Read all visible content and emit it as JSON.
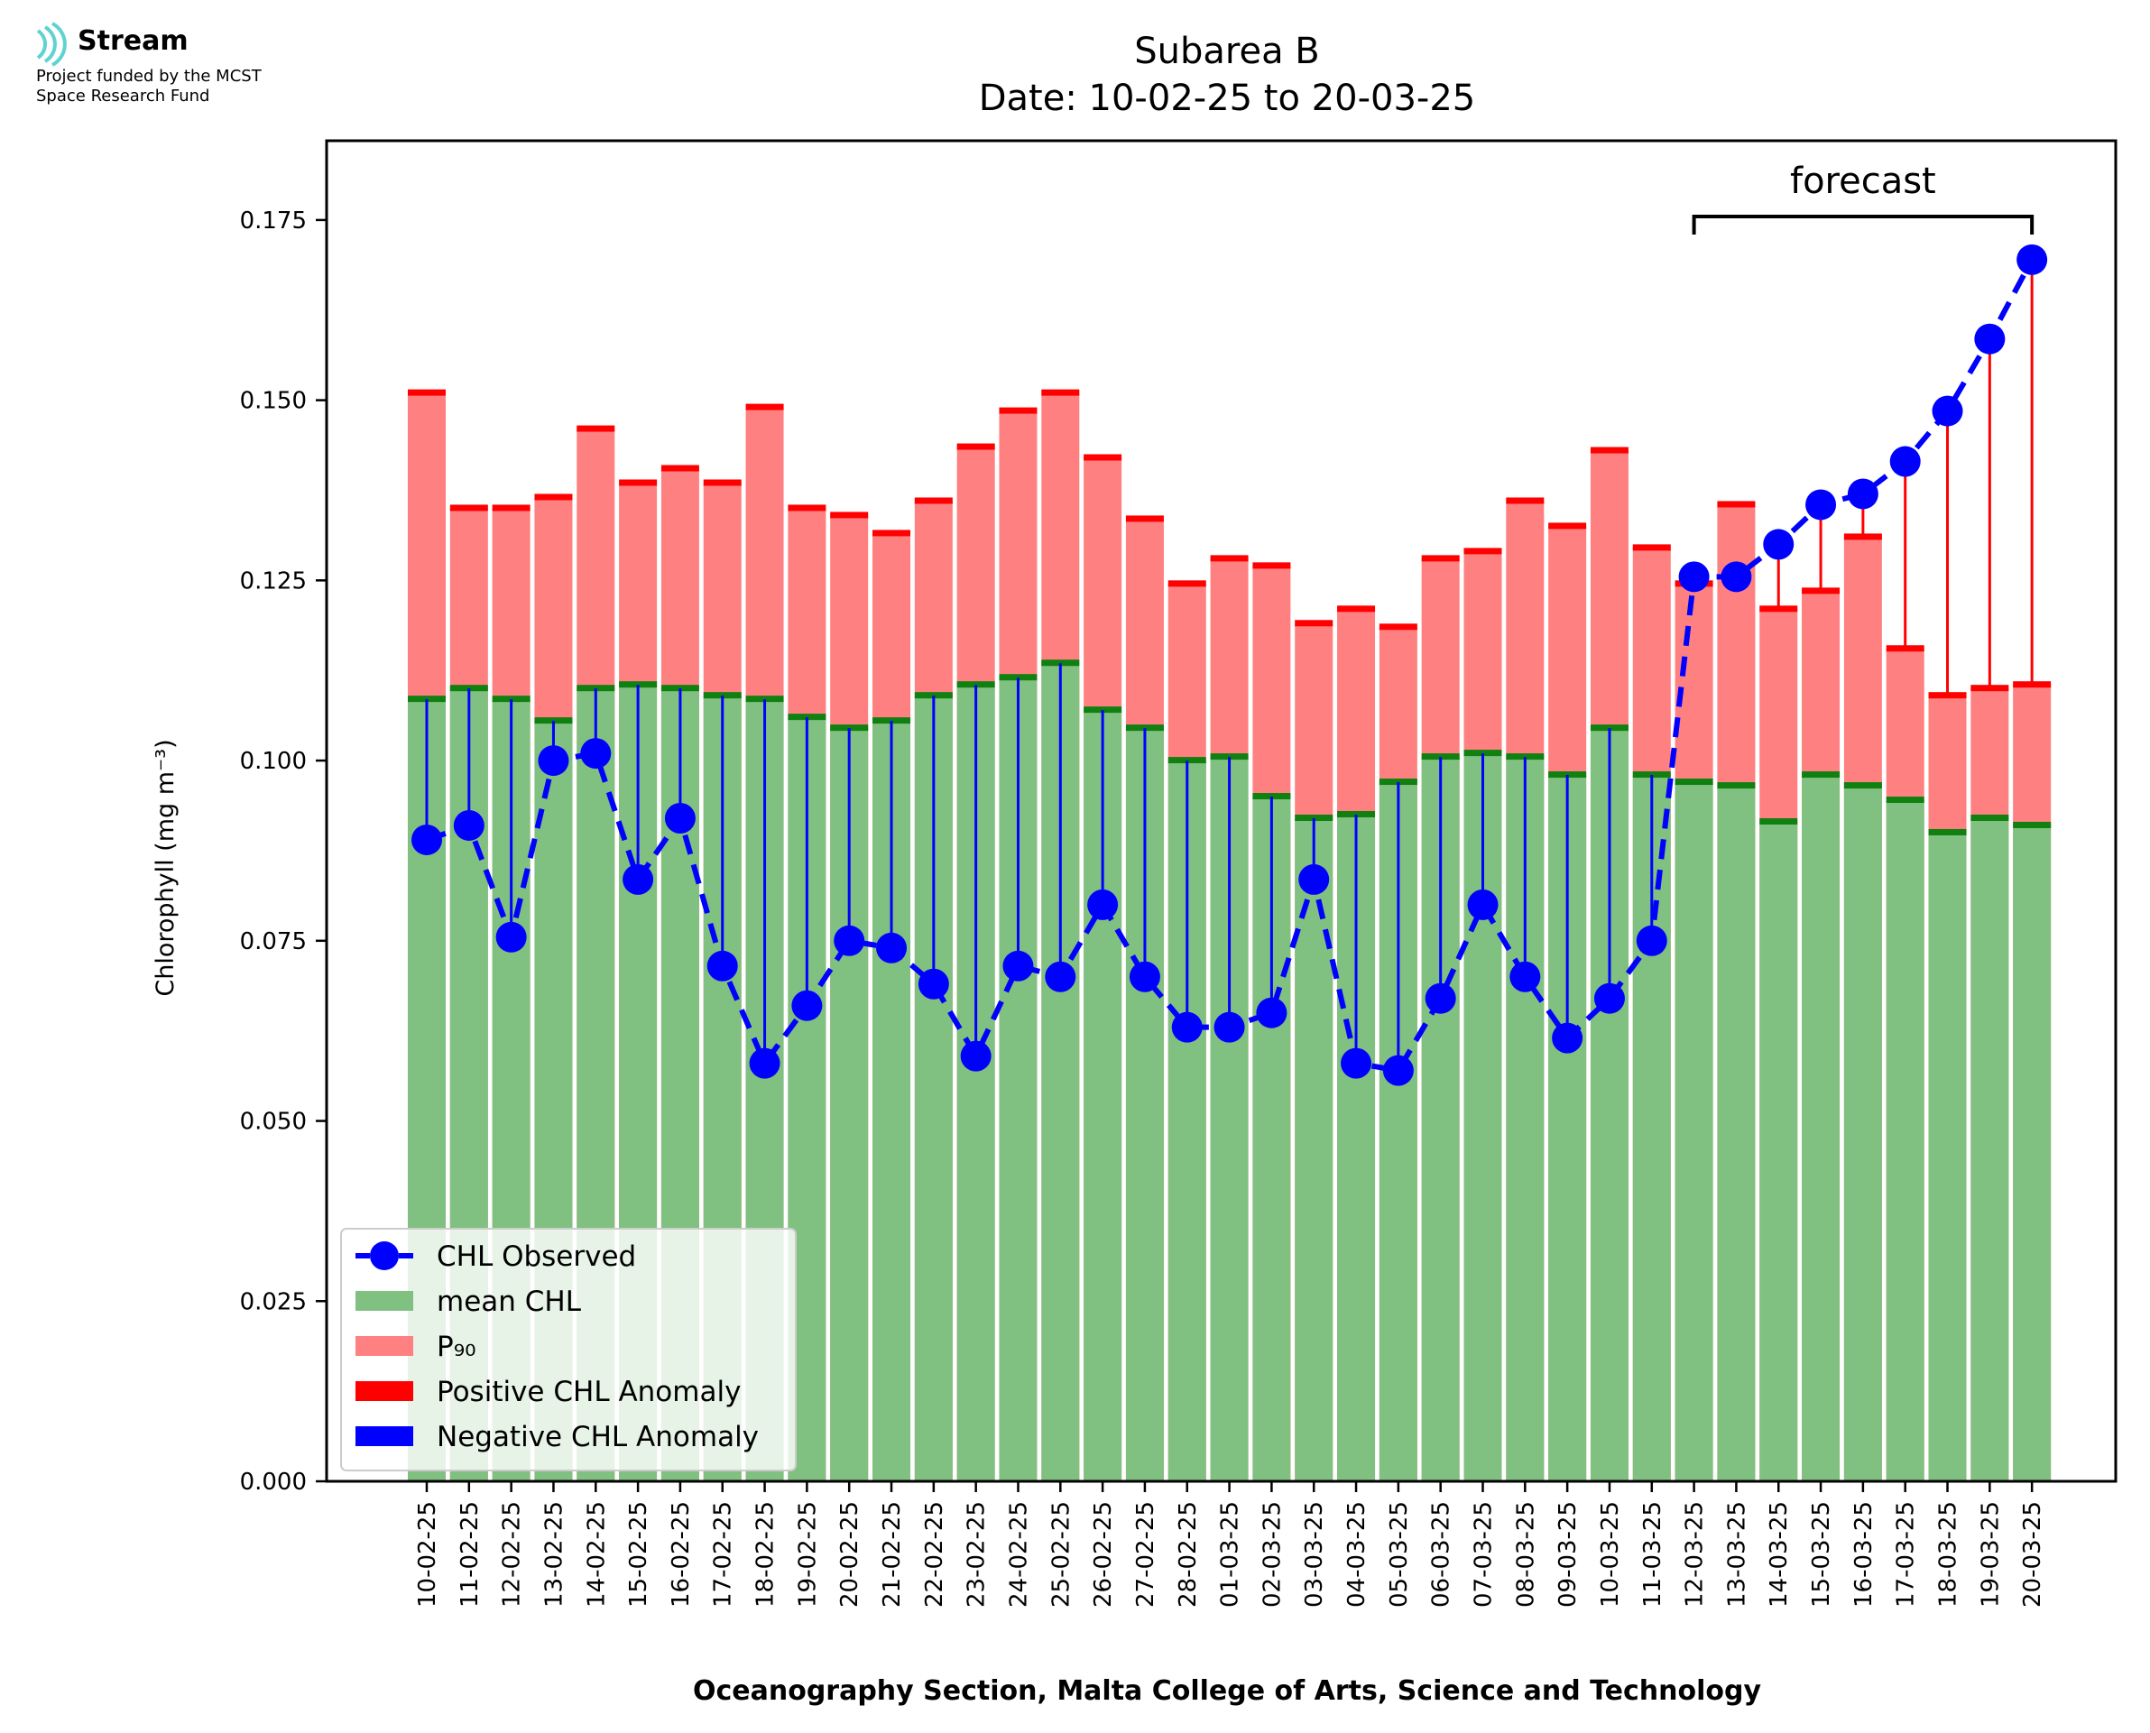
{
  "logo": {
    "name": "Stream",
    "line1": "Project funded by the MCST",
    "line2": "Space Research Fund",
    "color": "#5fd3d0"
  },
  "chart_data": {
    "type": "bar",
    "title_line1": "Subarea B",
    "title_line2": "Date: 10-02-25 to 20-03-25",
    "xlabel": "Oceanography Section, Malta College of Arts, Science and Technology",
    "ylabel": "Chlorophyll (mg m⁻³)",
    "ylim": [
      0,
      0.186
    ],
    "yticks": [
      "0.000",
      "0.025",
      "0.050",
      "0.075",
      "0.100",
      "0.125",
      "0.150",
      "0.175"
    ],
    "ytick_values": [
      0,
      0.025,
      0.05,
      0.075,
      0.1,
      0.125,
      0.15,
      0.175
    ],
    "categories": [
      "10-02-25",
      "11-02-25",
      "12-02-25",
      "13-02-25",
      "14-02-25",
      "15-02-25",
      "16-02-25",
      "17-02-25",
      "18-02-25",
      "19-02-25",
      "20-02-25",
      "21-02-25",
      "22-02-25",
      "23-02-25",
      "24-02-25",
      "25-02-25",
      "26-02-25",
      "27-02-25",
      "28-02-25",
      "01-03-25",
      "02-03-25",
      "03-03-25",
      "04-03-25",
      "05-03-25",
      "06-03-25",
      "07-03-25",
      "08-03-25",
      "09-03-25",
      "10-03-25",
      "11-03-25",
      "12-03-25",
      "13-03-25",
      "14-03-25",
      "15-03-25",
      "16-03-25",
      "17-03-25",
      "18-03-25",
      "19-03-25",
      "20-03-25"
    ],
    "series": [
      {
        "name": "CHL Observed",
        "color": "#0000ff",
        "values": [
          0.089,
          0.091,
          0.0755,
          0.1,
          0.101,
          0.0835,
          0.092,
          0.0715,
          0.058,
          0.066,
          0.075,
          0.074,
          0.069,
          0.059,
          0.0715,
          0.07,
          0.08,
          0.07,
          0.063,
          0.063,
          0.065,
          0.0835,
          0.058,
          0.057,
          0.067,
          0.08,
          0.07,
          0.0615,
          0.067,
          0.075,
          0.1255,
          0.1255,
          0.13,
          0.1355,
          0.137,
          0.1415,
          0.1485,
          0.1585,
          0.1695
        ]
      },
      {
        "name": "mean CHL",
        "color": "#80c080",
        "values": [
          0.1085,
          0.11,
          0.1085,
          0.1055,
          0.11,
          0.1105,
          0.11,
          0.109,
          0.1085,
          0.106,
          0.1045,
          0.1055,
          0.109,
          0.1105,
          0.1115,
          0.1135,
          0.107,
          0.1045,
          0.1,
          0.1005,
          0.095,
          0.092,
          0.0925,
          0.097,
          0.1005,
          0.101,
          0.1005,
          0.098,
          0.1045,
          0.098,
          0.097,
          0.0965,
          0.0915,
          0.098,
          0.0965,
          0.0945,
          0.09,
          0.092,
          0.091
        ]
      },
      {
        "name": "P₉₀",
        "color": "#ff8080",
        "values": [
          0.151,
          0.135,
          0.135,
          0.1365,
          0.146,
          0.1385,
          0.1405,
          0.1385,
          0.149,
          0.135,
          0.134,
          0.1315,
          0.136,
          0.1435,
          0.1485,
          0.151,
          0.142,
          0.1335,
          0.1245,
          0.128,
          0.127,
          0.119,
          0.121,
          0.1185,
          0.128,
          0.129,
          0.136,
          0.1325,
          0.143,
          0.1295,
          0.1245,
          0.1355,
          0.121,
          0.1235,
          0.131,
          0.1155,
          0.109,
          0.11,
          0.1105
        ]
      },
      {
        "name": "Positive CHL Anomaly",
        "color": "#ff0000"
      },
      {
        "name": "Negative CHL Anomaly",
        "color": "#0000ff"
      }
    ],
    "annotation": {
      "text": "forecast",
      "from": "12-03-25",
      "to": "20-03-25"
    },
    "legend_position": "lower-left",
    "grid": false
  }
}
